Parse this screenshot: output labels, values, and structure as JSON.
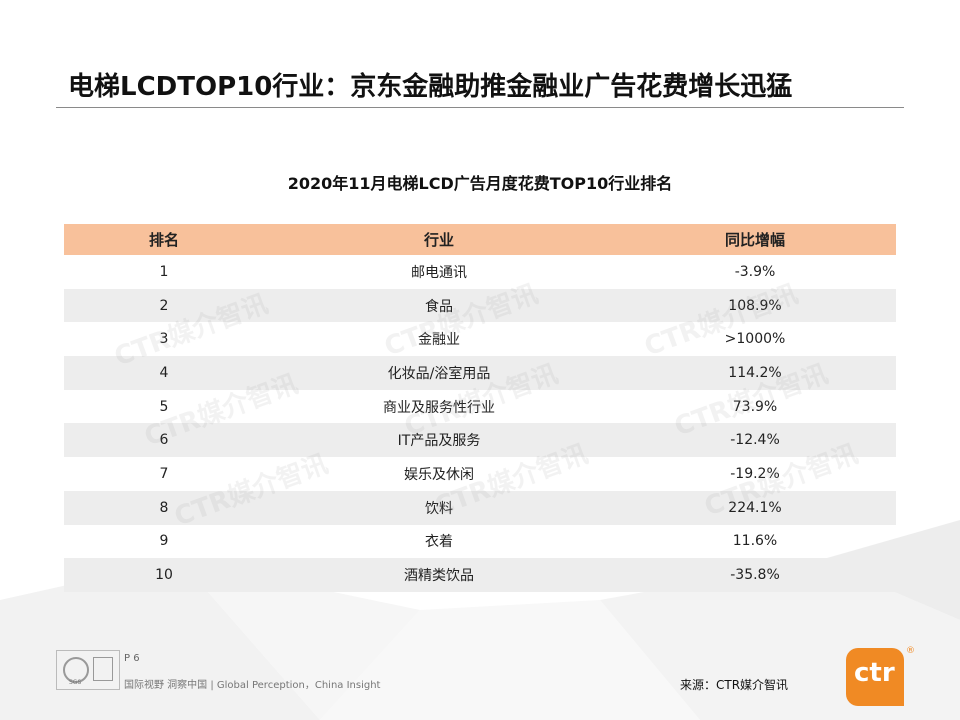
{
  "title": "电梯LCDTOP10行业：京东金融助推金融业广告花费增长迅猛",
  "subtitle": "2020年11月电梯LCD广告月度花费TOP10行业排名",
  "table": {
    "headers": [
      "排名",
      "行业",
      "同比增幅"
    ],
    "rows": [
      {
        "rank": "1",
        "industry": "邮电通讯",
        "growth": "-3.9%"
      },
      {
        "rank": "2",
        "industry": "食品",
        "growth": "108.9%"
      },
      {
        "rank": "3",
        "industry": "金融业",
        "growth": ">1000%"
      },
      {
        "rank": "4",
        "industry": "化妆品/浴室用品",
        "growth": "114.2%"
      },
      {
        "rank": "5",
        "industry": "商业及服务性行业",
        "growth": "73.9%"
      },
      {
        "rank": "6",
        "industry": "IT产品及服务",
        "growth": "-12.4%"
      },
      {
        "rank": "7",
        "industry": "娱乐及休闲",
        "growth": "-19.2%"
      },
      {
        "rank": "8",
        "industry": "饮料",
        "growth": "224.1%"
      },
      {
        "rank": "9",
        "industry": "衣着",
        "growth": "11.6%"
      },
      {
        "rank": "10",
        "industry": "酒精类饮品",
        "growth": "-35.8%"
      }
    ]
  },
  "watermark": "CTR媒介智讯",
  "footer": {
    "page": "P 6",
    "tagline": "国际视野 洞察中国 | Global Perception，China Insight",
    "source": "来源：CTR媒介智讯",
    "logo_text": "ctr",
    "reg_mark": "®",
    "cert_label": "SGS"
  },
  "colors": {
    "header_bg": "#f8c19b",
    "alt_row": "#ededed",
    "brand": "#f08a24"
  }
}
